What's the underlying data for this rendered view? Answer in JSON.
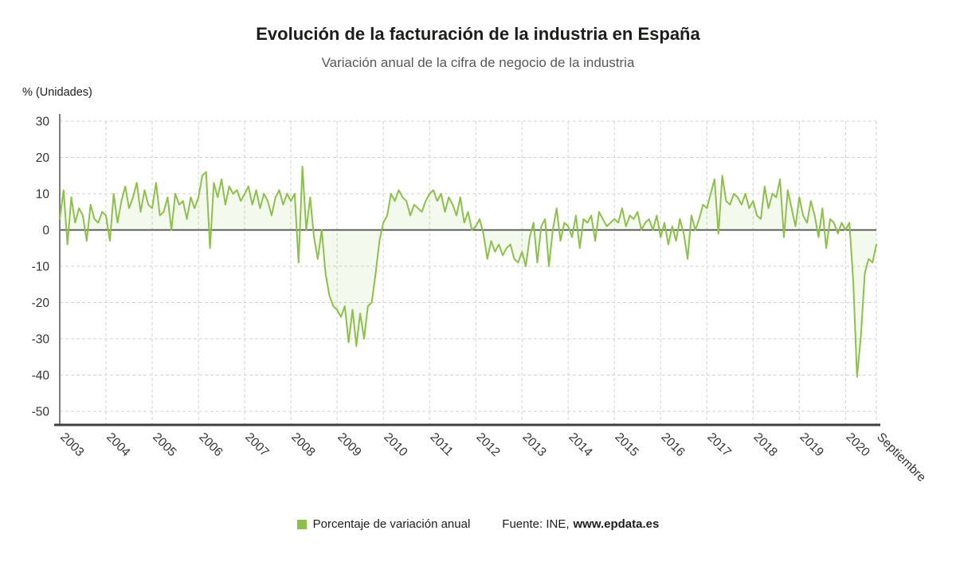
{
  "title": "Evolución de la facturación de la industria en España",
  "subtitle": "Variación anual de la cifra de negocio de la industria",
  "legend": {
    "series_label": "Porcentaje de variación anual",
    "source_prefix": "Fuente: INE,",
    "source_link": "www.epdata.es"
  },
  "chart_data": {
    "type": "line",
    "title": "Evolución de la facturación de la industria en España",
    "subtitle": "Variación anual de la cifra de negocio de la industria",
    "ylabel": "% (Unidades)",
    "xlabel": "",
    "ylim": [
      -50,
      30
    ],
    "yticks": [
      30,
      20,
      10,
      0,
      -10,
      -20,
      -30,
      -40,
      -50
    ],
    "grid": true,
    "legend_position": "bottom",
    "line_color": "#8cc04b",
    "fill_color": "rgba(140,192,75,0.10)",
    "x_tick_labels": [
      "2003",
      "2004",
      "2005",
      "2006",
      "2007",
      "2008",
      "2009",
      "2010",
      "2011",
      "2012",
      "2013",
      "2014",
      "2015",
      "2016",
      "2017",
      "2018",
      "2019",
      "2020",
      "Septiembre"
    ],
    "series": [
      {
        "name": "Porcentaje de variación anual",
        "frequency": "monthly",
        "start": "2003-01",
        "end": "2020-09",
        "values": [
          3,
          11,
          -4,
          9,
          2,
          6,
          4,
          -3,
          7,
          3,
          2,
          5,
          4,
          -3,
          10,
          2,
          8,
          12,
          6,
          9,
          13,
          5,
          11,
          7,
          6,
          13,
          4,
          5,
          9,
          0,
          10,
          7,
          8,
          3,
          9,
          6,
          9,
          15,
          16,
          -5,
          13,
          9,
          14,
          7,
          12,
          10,
          11,
          8,
          10,
          12,
          7,
          11,
          6,
          10,
          8,
          4,
          9,
          11,
          7,
          10,
          8,
          10,
          -9,
          17.5,
          0,
          9,
          -2,
          -8,
          0,
          -12,
          -18,
          -21,
          -22,
          -24,
          -21,
          -31,
          -22,
          -32,
          -23,
          -30,
          -21,
          -20,
          -12,
          -3,
          2,
          4,
          10,
          8,
          11,
          9,
          8,
          4,
          7,
          6,
          5,
          8,
          10,
          11,
          8,
          10,
          5,
          9,
          7,
          4,
          9,
          2,
          5,
          0,
          1,
          3,
          -1,
          -8,
          -3,
          -6,
          -4,
          -7,
          -5,
          -4,
          -8,
          -9,
          -6,
          -10,
          -2,
          2,
          -9,
          1,
          3,
          -10,
          0,
          6,
          -3,
          2,
          1,
          -2,
          4,
          -5,
          3,
          2,
          4,
          -3,
          5,
          3,
          1,
          2,
          3,
          2,
          6,
          1,
          4,
          3,
          5,
          0,
          2,
          3,
          0,
          4,
          -2,
          2,
          -4,
          1,
          -3,
          3,
          -1,
          -8,
          4,
          0,
          3,
          7,
          6,
          10,
          14,
          -1,
          15,
          8,
          7,
          10,
          9,
          7,
          10,
          6,
          8,
          4,
          3,
          12,
          6,
          10,
          9,
          14,
          -2,
          11,
          6,
          1,
          9,
          4,
          2,
          8,
          4,
          -2,
          6,
          -5,
          3,
          2,
          -1,
          2,
          0,
          2,
          -14,
          -40.5,
          -29,
          -12,
          -8,
          -9,
          -4
        ]
      }
    ]
  }
}
